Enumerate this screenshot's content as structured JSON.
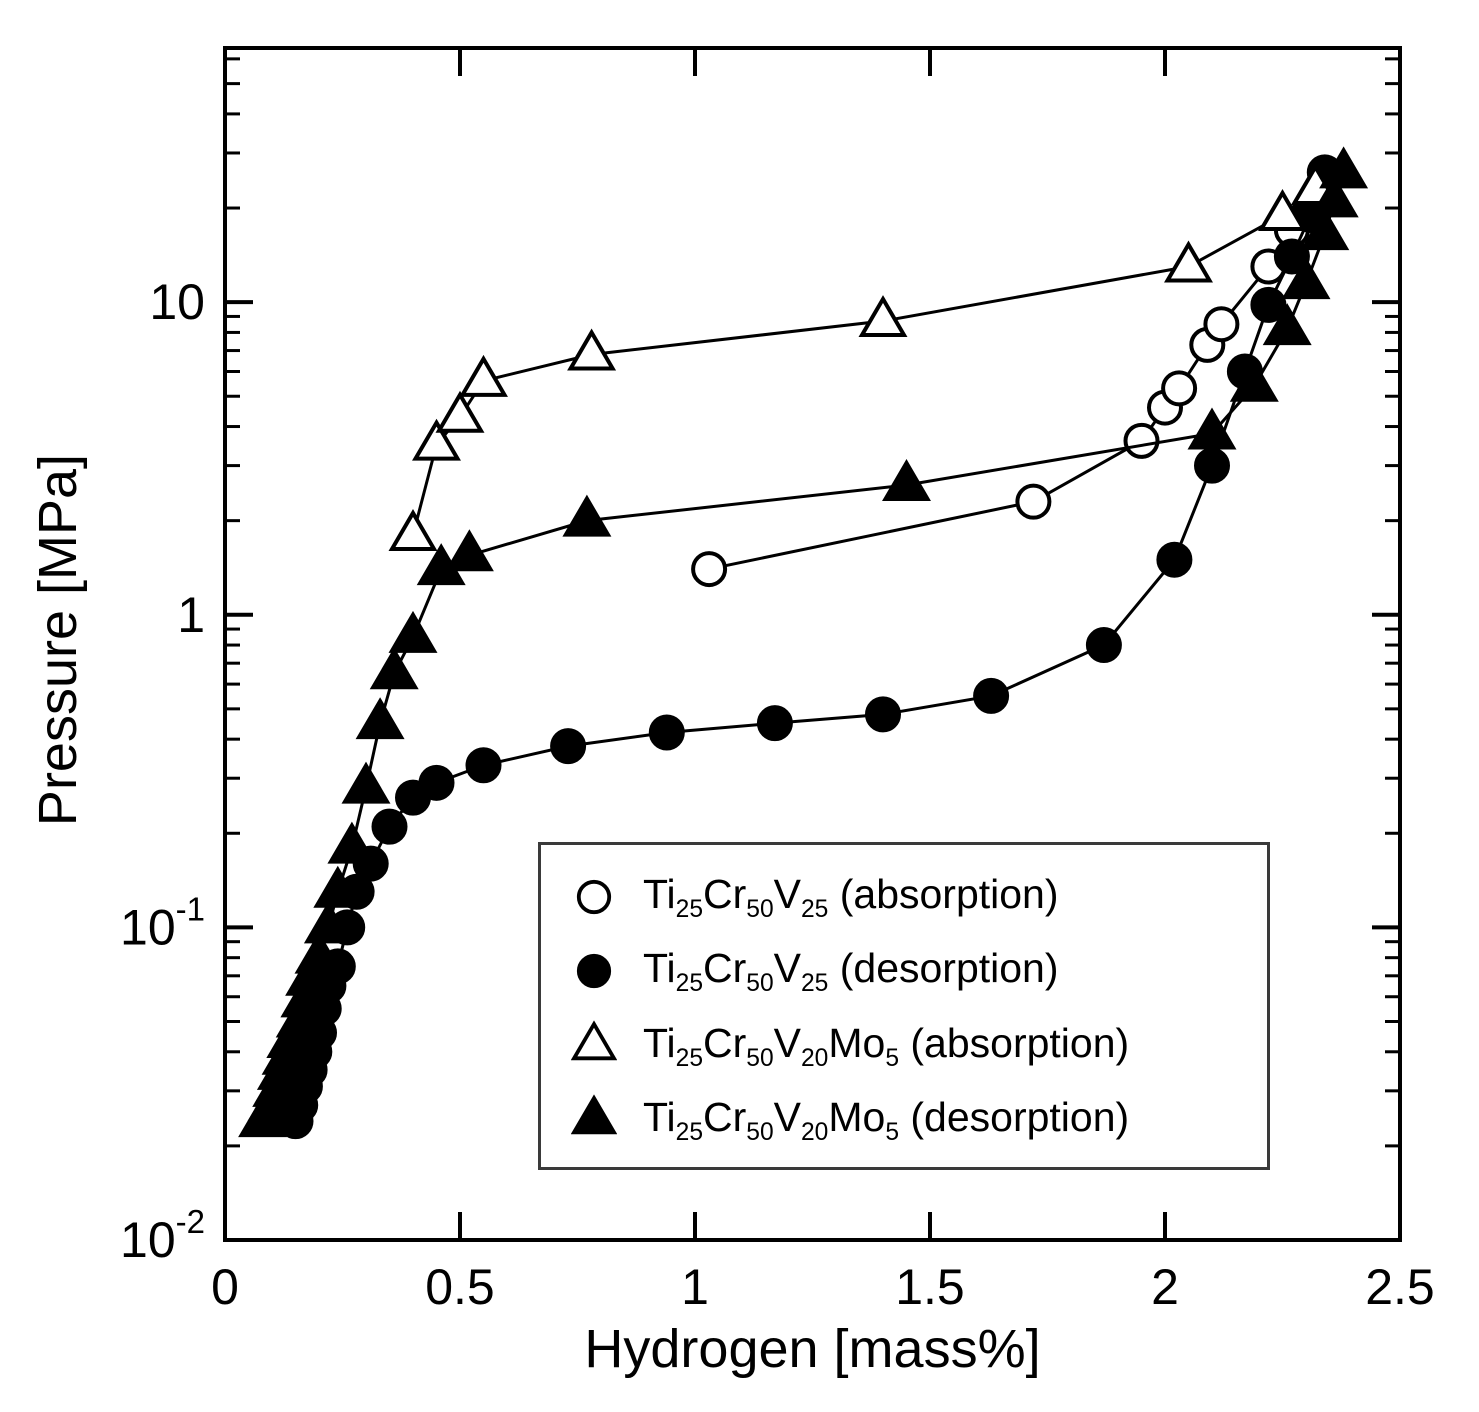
{
  "figure": {
    "background": "#ffffff",
    "frame_color": "#000000"
  },
  "chart_data": {
    "type": "scatter",
    "title": "",
    "xlabel": "Hydrogen [mass%]",
    "ylabel": "Pressure [MPa]",
    "grid": false,
    "legend_position": "inside lower-center",
    "x_axis": {
      "scale": "linear",
      "range": [
        0,
        2.5
      ],
      "label": "Hydrogen [mass%]",
      "ticks": [
        {
          "value": 0,
          "label": "0"
        },
        {
          "value": 0.5,
          "label": "0.5"
        },
        {
          "value": 1,
          "label": "1"
        },
        {
          "value": 1.5,
          "label": "1.5"
        },
        {
          "value": 2,
          "label": "2"
        },
        {
          "value": 2.5,
          "label": "2.5"
        }
      ]
    },
    "y_axis": {
      "scale": "log",
      "range": [
        0.01,
        65
      ],
      "label": "Pressure [MPa]",
      "ticks": [
        {
          "value": 0.01,
          "base": "10",
          "exp": "-2"
        },
        {
          "value": 0.1,
          "base": "10",
          "exp": "-1"
        },
        {
          "value": 1,
          "base": "1",
          "exp": ""
        },
        {
          "value": 10,
          "base": "10",
          "exp": ""
        }
      ]
    },
    "series": [
      {
        "name": "Ti25Cr50V25 (absorption)",
        "marker": "circle-open",
        "label_parts": [
          [
            "Ti",
            "25"
          ],
          [
            "Cr",
            "50"
          ],
          [
            "V",
            "25"
          ]
        ],
        "label_suffix": " (absorption)",
        "points": [
          [
            1.03,
            1.4
          ],
          [
            1.72,
            2.3
          ],
          [
            1.95,
            3.6
          ],
          [
            2.0,
            4.6
          ],
          [
            2.03,
            5.3
          ],
          [
            2.09,
            7.3
          ],
          [
            2.12,
            8.5
          ],
          [
            2.22,
            13
          ],
          [
            2.27,
            17
          ],
          [
            2.31,
            20
          ]
        ]
      },
      {
        "name": "Ti25Cr50V25 (desorption)",
        "marker": "circle-filled",
        "label_parts": [
          [
            "Ti",
            "25"
          ],
          [
            "Cr",
            "50"
          ],
          [
            "V",
            "25"
          ]
        ],
        "label_suffix": " (desorption)",
        "points": [
          [
            0.15,
            0.024
          ],
          [
            0.16,
            0.027
          ],
          [
            0.17,
            0.031
          ],
          [
            0.18,
            0.035
          ],
          [
            0.19,
            0.04
          ],
          [
            0.2,
            0.046
          ],
          [
            0.21,
            0.055
          ],
          [
            0.22,
            0.065
          ],
          [
            0.24,
            0.075
          ],
          [
            0.26,
            0.1
          ],
          [
            0.28,
            0.13
          ],
          [
            0.31,
            0.16
          ],
          [
            0.35,
            0.21
          ],
          [
            0.4,
            0.26
          ],
          [
            0.45,
            0.29
          ],
          [
            0.55,
            0.33
          ],
          [
            0.73,
            0.38
          ],
          [
            0.94,
            0.42
          ],
          [
            1.17,
            0.45
          ],
          [
            1.4,
            0.48
          ],
          [
            1.63,
            0.55
          ],
          [
            1.87,
            0.8
          ],
          [
            2.02,
            1.5
          ],
          [
            2.1,
            3.0
          ],
          [
            2.17,
            6.0
          ],
          [
            2.22,
            9.8
          ],
          [
            2.27,
            14
          ],
          [
            2.31,
            19
          ],
          [
            2.34,
            26
          ]
        ]
      },
      {
        "name": "Ti25Cr50V20Mo5 (absorption)",
        "marker": "triangle-open",
        "label_parts": [
          [
            "Ti",
            "25"
          ],
          [
            "Cr",
            "50"
          ],
          [
            "V",
            "20"
          ],
          [
            "Mo",
            "5"
          ]
        ],
        "label_suffix": " (absorption)",
        "points": [
          [
            0.4,
            1.8
          ],
          [
            0.45,
            3.5
          ],
          [
            0.5,
            4.3
          ],
          [
            0.55,
            5.6
          ],
          [
            0.78,
            6.8
          ],
          [
            1.4,
            8.7
          ],
          [
            2.05,
            13
          ],
          [
            2.25,
            19
          ],
          [
            2.32,
            23
          ]
        ]
      },
      {
        "name": "Ti25Cr50V20Mo5 (desorption)",
        "marker": "triangle-filled",
        "label_parts": [
          [
            "Ti",
            "25"
          ],
          [
            "Cr",
            "50"
          ],
          [
            "V",
            "20"
          ],
          [
            "Mo",
            "5"
          ]
        ],
        "label_suffix": " (desorption)",
        "points": [
          [
            0.08,
            0.024
          ],
          [
            0.1,
            0.027
          ],
          [
            0.11,
            0.03
          ],
          [
            0.12,
            0.034
          ],
          [
            0.13,
            0.038
          ],
          [
            0.14,
            0.043
          ],
          [
            0.16,
            0.05
          ],
          [
            0.17,
            0.058
          ],
          [
            0.18,
            0.068
          ],
          [
            0.2,
            0.08
          ],
          [
            0.22,
            0.1
          ],
          [
            0.24,
            0.13
          ],
          [
            0.27,
            0.18
          ],
          [
            0.3,
            0.28
          ],
          [
            0.33,
            0.45
          ],
          [
            0.36,
            0.65
          ],
          [
            0.4,
            0.85
          ],
          [
            0.46,
            1.4
          ],
          [
            0.52,
            1.55
          ],
          [
            0.77,
            2.0
          ],
          [
            1.45,
            2.6
          ],
          [
            2.1,
            3.8
          ],
          [
            2.19,
            5.4
          ],
          [
            2.26,
            8.2
          ],
          [
            2.3,
            11.5
          ],
          [
            2.34,
            16.5
          ],
          [
            2.36,
            21
          ],
          [
            2.38,
            26
          ]
        ]
      }
    ]
  }
}
